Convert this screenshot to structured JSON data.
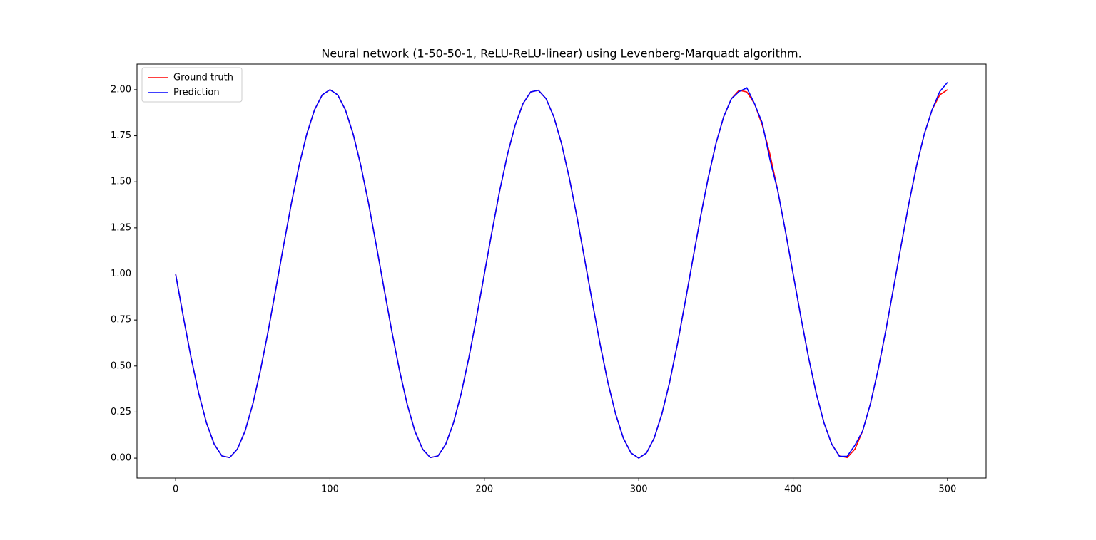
{
  "chart_data": {
    "type": "line",
    "title": "Neural network (1-50-50-1, ReLU-ReLU-linear) using Levenberg-Marquadt algorithm.",
    "x": [
      0,
      5,
      10,
      15,
      20,
      25,
      30,
      35,
      40,
      45,
      50,
      55,
      60,
      65,
      70,
      75,
      80,
      85,
      90,
      95,
      100,
      105,
      110,
      115,
      120,
      125,
      130,
      135,
      140,
      145,
      150,
      155,
      160,
      165,
      170,
      175,
      180,
      185,
      190,
      195,
      200,
      205,
      210,
      215,
      220,
      225,
      230,
      235,
      240,
      245,
      250,
      255,
      260,
      265,
      270,
      275,
      280,
      285,
      290,
      295,
      300,
      305,
      310,
      315,
      320,
      325,
      330,
      335,
      340,
      345,
      350,
      355,
      360,
      365,
      370,
      375,
      380,
      385,
      390,
      395,
      400,
      405,
      410,
      415,
      420,
      425,
      430,
      435,
      440,
      445,
      450,
      455,
      460,
      465,
      470,
      475,
      480,
      485,
      490,
      495,
      500
    ],
    "series": [
      {
        "name": "Ground truth",
        "color": "#ff0000",
        "values": [
          1.0,
          0.767,
          0.546,
          0.351,
          0.191,
          0.076,
          0.012,
          0.003,
          0.049,
          0.147,
          0.293,
          0.478,
          0.691,
          0.922,
          1.156,
          1.383,
          1.588,
          1.76,
          1.891,
          1.972,
          2.0,
          1.972,
          1.891,
          1.76,
          1.588,
          1.383,
          1.156,
          0.922,
          0.691,
          0.478,
          0.293,
          0.147,
          0.049,
          0.003,
          0.012,
          0.076,
          0.191,
          0.351,
          0.546,
          0.767,
          1.0,
          1.233,
          1.454,
          1.649,
          1.809,
          1.924,
          1.988,
          1.997,
          1.951,
          1.853,
          1.707,
          1.522,
          1.309,
          1.078,
          0.844,
          0.617,
          0.412,
          0.24,
          0.109,
          0.028,
          0,
          0.028,
          0.109,
          0.24,
          0.412,
          0.617,
          0.844,
          1.078,
          1.309,
          1.522,
          1.707,
          1.853,
          1.951,
          1.997,
          1.988,
          1.924,
          1.809,
          1.649,
          1.454,
          1.233,
          1.0,
          0.767,
          0.546,
          0.351,
          0.191,
          0.076,
          0.012,
          0.003,
          0.049,
          0.147,
          0.293,
          0.478,
          0.691,
          0.922,
          1.156,
          1.383,
          1.588,
          1.76,
          1.891,
          1.972,
          2.0
        ]
      },
      {
        "name": "Prediction",
        "color": "#0000ff",
        "values": [
          1.0,
          0.767,
          0.546,
          0.351,
          0.191,
          0.076,
          0.012,
          0.003,
          0.049,
          0.147,
          0.293,
          0.478,
          0.691,
          0.922,
          1.156,
          1.383,
          1.588,
          1.76,
          1.891,
          1.972,
          2.0,
          1.972,
          1.891,
          1.76,
          1.588,
          1.383,
          1.156,
          0.922,
          0.691,
          0.478,
          0.293,
          0.147,
          0.049,
          0.003,
          0.012,
          0.076,
          0.191,
          0.351,
          0.546,
          0.767,
          1.0,
          1.233,
          1.454,
          1.649,
          1.809,
          1.924,
          1.988,
          1.997,
          1.951,
          1.853,
          1.707,
          1.522,
          1.309,
          1.078,
          0.844,
          0.617,
          0.412,
          0.24,
          0.109,
          0.028,
          0,
          0.028,
          0.109,
          0.24,
          0.412,
          0.617,
          0.844,
          1.078,
          1.309,
          1.522,
          1.707,
          1.853,
          1.951,
          1.99,
          2.01,
          1.924,
          1.82,
          1.62,
          1.454,
          1.233,
          1.0,
          0.767,
          0.546,
          0.351,
          0.191,
          0.076,
          0.01,
          0.01,
          0.07,
          0.147,
          0.293,
          0.478,
          0.691,
          0.922,
          1.156,
          1.383,
          1.588,
          1.76,
          1.891,
          1.99,
          2.04
        ]
      }
    ],
    "xlim": [
      -25,
      525
    ],
    "ylim": [
      -0.108,
      2.139
    ],
    "xticks": [
      0,
      100,
      200,
      300,
      400,
      500
    ],
    "yticks": [
      {
        "value": 0,
        "label": "0.00"
      },
      {
        "value": 0.25,
        "label": "0.25"
      },
      {
        "value": 0.5,
        "label": "0.50"
      },
      {
        "value": 0.75,
        "label": "0.75"
      },
      {
        "value": 1,
        "label": "1.00"
      },
      {
        "value": 1.25,
        "label": "1.25"
      },
      {
        "value": 1.5,
        "label": "1.50"
      },
      {
        "value": 1.75,
        "label": "1.75"
      },
      {
        "value": 2,
        "label": "2.00"
      }
    ],
    "legend": "upper left",
    "grid": false
  }
}
